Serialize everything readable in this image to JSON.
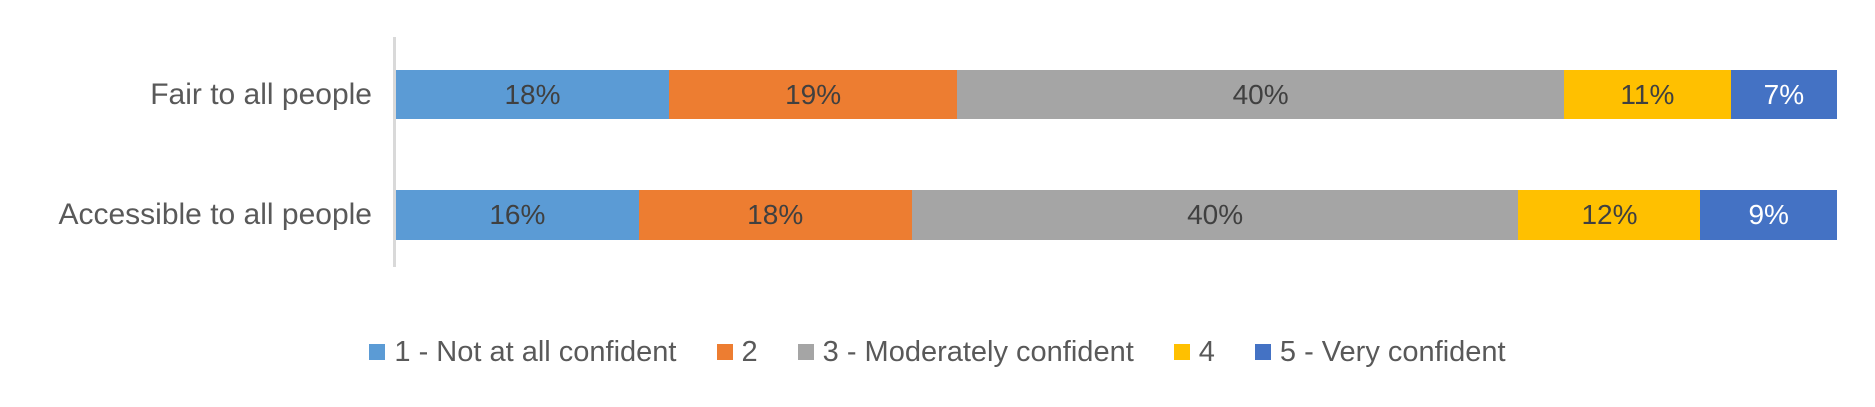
{
  "chart_data": {
    "type": "bar",
    "subtype": "stacked-horizontal-100pct",
    "orientation": "horizontal",
    "title": "",
    "xlabel": "",
    "ylabel": "",
    "grid": false,
    "legend_position": "bottom",
    "axis_line_color": "#d9d9d9",
    "category_text_color": "#595959",
    "legend_text_color": "#595959",
    "value_format": "percent",
    "categories": [
      "Fair to all people",
      "Accessible to all people"
    ],
    "series": [
      {
        "name": "1 - Not at all confident",
        "color": "#5b9bd5",
        "label_color": "#404040",
        "values": [
          18,
          16
        ],
        "labels": [
          "18%",
          "16%"
        ]
      },
      {
        "name": "2",
        "color": "#ed7d31",
        "label_color": "#404040",
        "values": [
          19,
          18
        ],
        "labels": [
          "19%",
          "18%"
        ]
      },
      {
        "name": "3 - Moderately confident",
        "color": "#a5a5a5",
        "label_color": "#404040",
        "values": [
          40,
          40
        ],
        "labels": [
          "40%",
          "40%"
        ]
      },
      {
        "name": "4",
        "color": "#ffc000",
        "label_color": "#404040",
        "values": [
          11,
          12
        ],
        "labels": [
          "11%",
          "12%"
        ]
      },
      {
        "name": "5 - Very confident",
        "color": "#4472c4",
        "label_color": "#ffffff",
        "values": [
          7,
          9
        ],
        "labels": [
          "7%",
          "9%"
        ]
      }
    ]
  }
}
